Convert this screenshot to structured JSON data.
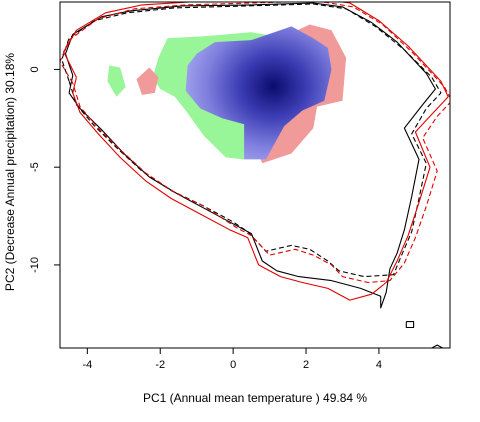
{
  "chart_data": {
    "type": "scatter",
    "title": "",
    "xlabel": "PC1 (Annual mean temperature ) 49.84 %",
    "ylabel": "PC2 (Decrease Annual precipitation) 30.18%",
    "xlim": [
      -4.75,
      5.95
    ],
    "ylim": [
      -14.25,
      3.45
    ],
    "x_ticks": [
      -4,
      -2,
      0,
      2,
      4
    ],
    "y_ticks": [
      0,
      -5,
      -10
    ],
    "x_tick_labels": [
      "-4",
      "-2",
      "0",
      "2",
      "4"
    ],
    "y_tick_labels": [
      "0",
      "-5",
      "-10"
    ],
    "grid": false,
    "legend": "none",
    "colors": {
      "green_region": "#98F598",
      "red_region": "#F09A9A",
      "blue_core": "#0B0B6E",
      "blue_edge": "#A8A8F0",
      "contour_black": "#000000",
      "contour_red": "#E00000"
    },
    "regions": [
      {
        "name": "green",
        "polygons": [
          [
            [
              -1.8,
              1.6
            ],
            [
              -0.8,
              1.7
            ],
            [
              0.5,
              1.9
            ],
            [
              1.5,
              1.6
            ],
            [
              1.0,
              0.6
            ],
            [
              0.4,
              -1.5
            ],
            [
              0.5,
              -3.6
            ],
            [
              0.3,
              -4.6
            ],
            [
              -0.2,
              -4.5
            ],
            [
              -0.8,
              -3.4
            ],
            [
              -1.3,
              -2.1
            ],
            [
              -1.6,
              -1.4
            ],
            [
              -2.0,
              -1.0
            ],
            [
              -2.2,
              -0.4
            ],
            [
              -2.05,
              0.6
            ]
          ],
          [
            [
              -3.4,
              0.2
            ],
            [
              -3.1,
              0.1
            ],
            [
              -2.95,
              -0.9
            ],
            [
              -3.2,
              -1.4
            ],
            [
              -3.45,
              -0.6
            ]
          ]
        ]
      },
      {
        "name": "red",
        "polygons": [
          [
            [
              1.3,
              1.6
            ],
            [
              2.1,
              2.3
            ],
            [
              2.7,
              2.0
            ],
            [
              3.1,
              0.6
            ],
            [
              3.0,
              -1.6
            ],
            [
              2.3,
              -1.9
            ],
            [
              2.2,
              -3.0
            ],
            [
              1.6,
              -4.3
            ],
            [
              0.8,
              -4.8
            ],
            [
              0.5,
              -3.6
            ],
            [
              1.0,
              -1.5
            ]
          ],
          [
            [
              -2.3,
              0.1
            ],
            [
              -2.05,
              -0.4
            ],
            [
              -2.15,
              -1.2
            ],
            [
              -2.5,
              -1.3
            ],
            [
              -2.65,
              -0.5
            ]
          ]
        ]
      },
      {
        "name": "blue",
        "polygons": [
          [
            [
              -0.5,
              1.4
            ],
            [
              0.5,
              1.5
            ],
            [
              1.6,
              2.2
            ],
            [
              2.2,
              1.6
            ],
            [
              2.6,
              1.1
            ],
            [
              2.7,
              0.0
            ],
            [
              2.5,
              -1.6
            ],
            [
              1.9,
              -2.1
            ],
            [
              1.4,
              -2.9
            ],
            [
              0.9,
              -4.6
            ],
            [
              0.3,
              -4.6
            ],
            [
              0.3,
              -2.8
            ],
            [
              -0.3,
              -2.5
            ],
            [
              -0.9,
              -2.0
            ],
            [
              -1.3,
              -1.1
            ],
            [
              -1.25,
              0.2
            ],
            [
              -1.0,
              0.8
            ]
          ]
        ]
      }
    ],
    "contours": [
      {
        "color": "black",
        "dash": "solid",
        "points": [
          [
            -4.4,
            -0.3
          ],
          [
            -4.6,
            0.8
          ],
          [
            -4.4,
            1.8
          ],
          [
            -3.6,
            2.7
          ],
          [
            -2.8,
            3.0
          ],
          [
            -1.4,
            3.25
          ],
          [
            0.5,
            3.3
          ],
          [
            2.2,
            3.4
          ],
          [
            3.0,
            3.2
          ],
          [
            3.8,
            2.4
          ],
          [
            4.5,
            1.4
          ],
          [
            5.3,
            -0.2
          ],
          [
            5.55,
            -1.0
          ],
          [
            5.2,
            -1.8
          ],
          [
            4.7,
            -3.0
          ],
          [
            5.1,
            -4.6
          ],
          [
            4.9,
            -6.5
          ],
          [
            4.7,
            -8.2
          ],
          [
            4.5,
            -9.4
          ],
          [
            4.3,
            -10.2
          ],
          [
            4.2,
            -11.4
          ],
          [
            4.05,
            -12.2
          ],
          [
            4.05,
            -11.6
          ],
          [
            3.5,
            -11.2
          ],
          [
            2.7,
            -10.8
          ],
          [
            1.8,
            -10.6
          ],
          [
            1.2,
            -10.3
          ],
          [
            0.8,
            -9.8
          ],
          [
            0.5,
            -8.4
          ],
          [
            0.1,
            -8.0
          ],
          [
            -0.8,
            -7.1
          ],
          [
            -1.5,
            -6.4
          ],
          [
            -2.3,
            -5.5
          ],
          [
            -3.0,
            -4.3
          ],
          [
            -3.6,
            -3.1
          ],
          [
            -4.2,
            -2.0
          ],
          [
            -4.5,
            -1.2
          ],
          [
            -4.4,
            -0.3
          ]
        ]
      },
      {
        "color": "black",
        "dash": "dashed",
        "points": [
          [
            -4.5,
            -0.6
          ],
          [
            -4.7,
            0.5
          ],
          [
            -4.5,
            1.6
          ],
          [
            -3.8,
            2.5
          ],
          [
            -2.9,
            2.9
          ],
          [
            -1.6,
            3.15
          ],
          [
            0.4,
            3.25
          ],
          [
            2.2,
            3.35
          ],
          [
            3.1,
            3.1
          ],
          [
            3.9,
            2.2
          ],
          [
            4.7,
            1.0
          ],
          [
            5.45,
            -0.4
          ],
          [
            5.7,
            -1.2
          ],
          [
            5.3,
            -2.0
          ],
          [
            4.9,
            -3.3
          ],
          [
            5.3,
            -4.8
          ],
          [
            5.1,
            -6.6
          ],
          [
            4.9,
            -8.3
          ],
          [
            4.6,
            -9.6
          ],
          [
            4.4,
            -10.5
          ],
          [
            3.6,
            -10.6
          ],
          [
            2.9,
            -10.3
          ],
          [
            2.6,
            -9.8
          ],
          [
            2.1,
            -9.2
          ],
          [
            1.6,
            -9.0
          ],
          [
            0.9,
            -9.3
          ],
          [
            0.4,
            -8.3
          ],
          [
            0.0,
            -7.8
          ],
          [
            -0.9,
            -6.9
          ],
          [
            -1.7,
            -6.2
          ],
          [
            -2.5,
            -5.2
          ],
          [
            -3.2,
            -4.0
          ],
          [
            -3.8,
            -2.9
          ],
          [
            -4.3,
            -1.8
          ],
          [
            -4.5,
            -0.6
          ]
        ]
      },
      {
        "color": "red",
        "dash": "solid",
        "points": [
          [
            -4.3,
            -0.4
          ],
          [
            -4.65,
            0.9
          ],
          [
            -4.3,
            2.0
          ],
          [
            -3.5,
            2.9
          ],
          [
            -2.5,
            3.3
          ],
          [
            -1.2,
            3.45
          ],
          [
            0.6,
            3.5
          ],
          [
            2.4,
            3.6
          ],
          [
            3.2,
            3.4
          ],
          [
            4.0,
            2.5
          ],
          [
            4.8,
            1.2
          ],
          [
            5.7,
            -0.6
          ],
          [
            5.9,
            -1.4
          ],
          [
            5.5,
            -2.2
          ],
          [
            5.0,
            -3.2
          ],
          [
            5.4,
            -5.0
          ],
          [
            5.1,
            -6.8
          ],
          [
            4.8,
            -8.5
          ],
          [
            4.5,
            -9.8
          ],
          [
            4.2,
            -10.9
          ],
          [
            3.8,
            -11.5
          ],
          [
            3.2,
            -11.8
          ],
          [
            2.6,
            -11.2
          ],
          [
            1.9,
            -10.9
          ],
          [
            1.3,
            -10.6
          ],
          [
            0.7,
            -10.0
          ],
          [
            0.4,
            -8.6
          ],
          [
            -0.1,
            -8.2
          ],
          [
            -1.0,
            -7.3
          ],
          [
            -1.7,
            -6.6
          ],
          [
            -2.4,
            -5.7
          ],
          [
            -3.1,
            -4.5
          ],
          [
            -3.7,
            -3.3
          ],
          [
            -4.2,
            -2.2
          ],
          [
            -4.4,
            -1.2
          ],
          [
            -4.3,
            -0.4
          ]
        ]
      },
      {
        "color": "red",
        "dash": "dashed",
        "points": [
          [
            -4.4,
            -0.7
          ],
          [
            -4.75,
            0.4
          ],
          [
            -4.5,
            1.5
          ],
          [
            -3.7,
            2.6
          ],
          [
            -2.7,
            3.1
          ],
          [
            -1.3,
            3.3
          ],
          [
            0.5,
            3.4
          ],
          [
            2.3,
            3.5
          ],
          [
            3.3,
            3.2
          ],
          [
            4.1,
            2.3
          ],
          [
            4.9,
            0.9
          ],
          [
            5.8,
            -0.9
          ],
          [
            6.0,
            -1.6
          ],
          [
            5.6,
            -2.4
          ],
          [
            5.2,
            -3.5
          ],
          [
            5.6,
            -5.2
          ],
          [
            5.3,
            -7.0
          ],
          [
            5.0,
            -8.6
          ],
          [
            4.7,
            -9.9
          ],
          [
            4.3,
            -10.8
          ],
          [
            3.7,
            -10.9
          ],
          [
            3.0,
            -10.6
          ],
          [
            2.7,
            -10.0
          ],
          [
            2.2,
            -9.5
          ],
          [
            1.7,
            -9.2
          ],
          [
            1.0,
            -9.5
          ],
          [
            0.5,
            -8.5
          ],
          [
            0.1,
            -8.1
          ],
          [
            -0.8,
            -7.0
          ],
          [
            -1.6,
            -6.3
          ],
          [
            -2.4,
            -5.3
          ],
          [
            -3.1,
            -4.1
          ],
          [
            -3.7,
            -3.0
          ],
          [
            -4.2,
            -1.9
          ],
          [
            -4.4,
            -0.7
          ]
        ]
      },
      {
        "color": "black",
        "dash": "solid",
        "points": [
          [
            4.75,
            -12.9
          ],
          [
            4.95,
            -12.9
          ],
          [
            4.95,
            -13.2
          ],
          [
            4.75,
            -13.2
          ],
          [
            4.75,
            -12.9
          ]
        ]
      },
      {
        "color": "black",
        "dash": "solid",
        "points": [
          [
            5.45,
            -14.25
          ],
          [
            5.6,
            -14.1
          ],
          [
            5.75,
            -14.25
          ]
        ]
      }
    ]
  }
}
